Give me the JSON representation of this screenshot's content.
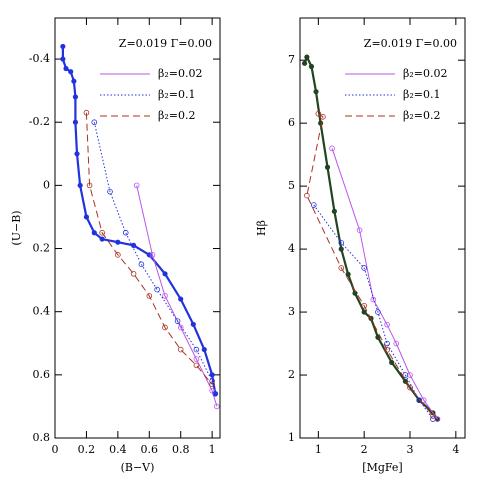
{
  "chart_data": [
    {
      "type": "line",
      "annotation": "Z=0.019 Γ=0.00",
      "xlabel": "(B−V)",
      "ylabel": "(U−B)",
      "xlim": [
        0,
        1.05
      ],
      "ylim": [
        -0.53,
        0.8
      ],
      "y_inverted": true,
      "xticks": [
        0,
        0.2,
        0.4,
        0.6,
        0.8,
        1
      ],
      "yticks": [
        -0.4,
        -0.2,
        0,
        0.2,
        0.4,
        0.6,
        0.8
      ],
      "legend": "upper right",
      "series": [
        {
          "color": "#2233dd",
          "dash": "solid",
          "width": 2.2,
          "markers": true,
          "x": [
            0.05,
            0.05,
            0.07,
            0.1,
            0.12,
            0.13,
            0.13,
            0.14,
            0.16,
            0.2,
            0.25,
            0.3,
            0.4,
            0.5,
            0.6,
            0.7,
            0.8,
            0.88,
            0.95,
            1.0,
            1.02
          ],
          "values": [
            -0.44,
            -0.4,
            -0.37,
            -0.36,
            -0.33,
            -0.28,
            -0.2,
            -0.1,
            0,
            0.1,
            0.15,
            0.17,
            0.18,
            0.19,
            0.22,
            0.28,
            0.36,
            0.44,
            0.52,
            0.6,
            0.66
          ]
        },
        {
          "name": "β₂=0.02",
          "color": "#bb55ee",
          "dash": "solid",
          "width": 1,
          "x": [
            0.52,
            0.62,
            0.7,
            0.8,
            0.9,
            1.0,
            1.03
          ],
          "values": [
            0.0,
            0.22,
            0.35,
            0.45,
            0.55,
            0.65,
            0.7
          ]
        },
        {
          "name": "β₂=0.1",
          "color": "#2233dd",
          "dash": "dotted",
          "width": 1,
          "x": [
            0.25,
            0.35,
            0.45,
            0.55,
            0.65,
            0.78,
            0.9,
            1.0,
            1.02
          ],
          "values": [
            -0.2,
            0.02,
            0.15,
            0.25,
            0.33,
            0.43,
            0.52,
            0.62,
            0.66
          ]
        },
        {
          "name": "β₂=0.2",
          "color": "#aa3322",
          "dash": "dashed",
          "width": 1,
          "x": [
            0.2,
            0.22,
            0.3,
            0.4,
            0.5,
            0.6,
            0.7,
            0.8,
            0.9,
            1.0
          ],
          "values": [
            -0.23,
            0.0,
            0.15,
            0.22,
            0.28,
            0.35,
            0.45,
            0.52,
            0.57,
            0.63
          ]
        }
      ]
    },
    {
      "type": "line",
      "annotation": "Z=0.019 Γ=0.00",
      "xlabel": "[MgFe]",
      "ylabel": "Hβ",
      "xlim": [
        0.6,
        4.2
      ],
      "ylim": [
        1,
        7.67
      ],
      "y_inverted": false,
      "xticks": [
        1,
        2,
        3,
        4
      ],
      "yticks": [
        1,
        2,
        3,
        4,
        5,
        6,
        7
      ],
      "legend": "upper right",
      "series": [
        {
          "color": "#224422",
          "dash": "solid",
          "width": 2.2,
          "markers": true,
          "x": [
            0.7,
            0.75,
            0.85,
            0.95,
            1.05,
            1.2,
            1.35,
            1.5,
            1.65,
            1.8,
            2.0,
            2.15,
            2.3,
            2.6,
            2.9,
            3.2,
            3.5,
            3.6
          ],
          "values": [
            6.95,
            7.05,
            6.9,
            6.5,
            6.0,
            5.3,
            4.6,
            4.0,
            3.6,
            3.3,
            3.0,
            2.9,
            2.6,
            2.2,
            1.9,
            1.6,
            1.4,
            1.3
          ]
        },
        {
          "name": "β₂=0.02",
          "color": "#bb55ee",
          "dash": "solid",
          "width": 1,
          "x": [
            1.3,
            1.9,
            2.2,
            2.5,
            2.7,
            3.0,
            3.3,
            3.6
          ],
          "values": [
            5.6,
            4.3,
            3.2,
            2.8,
            2.5,
            2.0,
            1.6,
            1.3
          ]
        },
        {
          "name": "β₂=0.1",
          "color": "#2233dd",
          "dash": "dotted",
          "width": 1,
          "x": [
            0.9,
            1.5,
            2.0,
            2.3,
            2.5,
            2.9,
            3.2,
            3.5
          ],
          "values": [
            4.7,
            4.1,
            3.7,
            3.0,
            2.5,
            2.0,
            1.6,
            1.3
          ]
        },
        {
          "name": "β₂=0.2",
          "color": "#aa3322",
          "dash": "dashed",
          "width": 1,
          "x": [
            1.0,
            1.1,
            0.75,
            1.5,
            2.0,
            2.5,
            3.0,
            3.5
          ],
          "values": [
            6.15,
            6.1,
            4.85,
            3.7,
            3.1,
            2.4,
            1.8,
            1.35
          ]
        }
      ]
    }
  ]
}
